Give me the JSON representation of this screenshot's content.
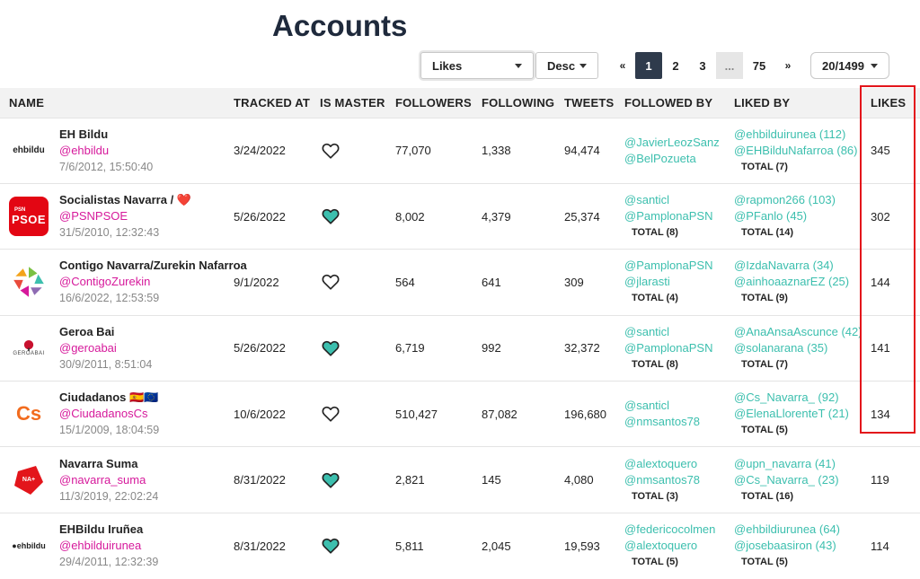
{
  "title": "Accounts",
  "controls": {
    "sort_field": "Likes",
    "sort_dir": "Desc",
    "pager": {
      "prev": "«",
      "pages": [
        "1",
        "2",
        "3"
      ],
      "ellipsis": "...",
      "last": "75",
      "next": "»"
    },
    "per_page": "20/1499"
  },
  "columns": [
    "NAME",
    "TRACKED AT",
    "IS MASTER",
    "FOLLOWERS",
    "FOLLOWING",
    "TWEETS",
    "FOLLOWED BY",
    "LIKED BY",
    "LIKES"
  ],
  "colors": {
    "accent": "#3cbfae",
    "handle": "#d6199b",
    "highlight": "#e3151b",
    "active_page": "#2f3b4c"
  },
  "rows": [
    {
      "logo": "ehbildu",
      "name": "EH Bildu",
      "handle": "@ehbildu",
      "created": "7/6/2012, 15:50:40",
      "tracked_at": "3/24/2022",
      "is_master": false,
      "followers": "77,070",
      "following": "1,338",
      "tweets": "94,474",
      "followed_by": [
        "@JavierLeozSanz",
        "@BelPozueta"
      ],
      "followed_total": "",
      "liked_by": [
        "@ehbilduirunea (112)",
        "@EHBilduNafarroa (86)"
      ],
      "liked_total": "TOTAL (7)",
      "likes": "345"
    },
    {
      "logo": "psoe",
      "logo_small": "PSN",
      "logo_large": "PSOE",
      "name": "Socialistas Navarra / ❤️",
      "handle": "@PSNPSOE",
      "created": "31/5/2010, 12:32:43",
      "tracked_at": "5/26/2022",
      "is_master": true,
      "followers": "8,002",
      "following": "4,379",
      "tweets": "25,374",
      "followed_by": [
        "@santicl",
        "@PamplonaPSN"
      ],
      "followed_total": "TOTAL (8)",
      "liked_by": [
        "@rapmon266 (103)",
        "@PFanlo (45)"
      ],
      "liked_total": "TOTAL (14)",
      "likes": "302"
    },
    {
      "logo": "contigo",
      "name": "Contigo Navarra/Zurekin Nafarroa",
      "handle": "@ContigoZurekin",
      "created": "16/6/2022, 12:53:59",
      "tracked_at": "9/1/2022",
      "is_master": false,
      "followers": "564",
      "following": "641",
      "tweets": "309",
      "followed_by": [
        "@PamplonaPSN",
        "@jlarasti"
      ],
      "followed_total": "TOTAL (4)",
      "liked_by": [
        "@IzdaNavarra (34)",
        "@ainhoaaznarEZ (25)"
      ],
      "liked_total": "TOTAL (9)",
      "likes": "144"
    },
    {
      "logo": "geroa",
      "logo_text": "GEROABAI",
      "name": "Geroa Bai",
      "handle": "@geroabai",
      "created": "30/9/2011, 8:51:04",
      "tracked_at": "5/26/2022",
      "is_master": true,
      "followers": "6,719",
      "following": "992",
      "tweets": "32,372",
      "followed_by": [
        "@santicl",
        "@PamplonaPSN"
      ],
      "followed_total": "TOTAL (8)",
      "liked_by": [
        "@AnaAnsaAscunce (42)",
        "@solanarana (35)"
      ],
      "liked_total": "TOTAL (7)",
      "likes": "141"
    },
    {
      "logo": "cs",
      "logo_text": "Cs",
      "name": "Ciudadanos 🇪🇸🇪🇺",
      "handle": "@CiudadanosCs",
      "created": "15/1/2009, 18:04:59",
      "tracked_at": "10/6/2022",
      "is_master": false,
      "followers": "510,427",
      "following": "87,082",
      "tweets": "196,680",
      "followed_by": [
        "@santicl",
        "@nmsantos78"
      ],
      "followed_total": "",
      "liked_by": [
        "@Cs_Navarra_ (92)",
        "@ElenaLlorenteT (21)"
      ],
      "liked_total": "TOTAL (5)",
      "likes": "134"
    },
    {
      "logo": "navarra",
      "logo_text": "NA+",
      "name": "Navarra Suma",
      "handle": "@navarra_suma",
      "created": "11/3/2019, 22:02:24",
      "tracked_at": "8/31/2022",
      "is_master": true,
      "followers": "2,821",
      "following": "145",
      "tweets": "4,080",
      "followed_by": [
        "@alextoquero",
        "@nmsantos78"
      ],
      "followed_total": "TOTAL (3)",
      "liked_by": [
        "@upn_navarra (41)",
        "@Cs_Navarra_ (23)"
      ],
      "liked_total": "TOTAL (16)",
      "likes": "119"
    },
    {
      "logo": "ehbildu-irunea",
      "logo_text": "●ehbildu",
      "name": "EHBildu Iruñea",
      "handle": "@ehbilduirunea",
      "created": "29/4/2011, 12:32:39",
      "tracked_at": "8/31/2022",
      "is_master": true,
      "followers": "5,811",
      "following": "2,045",
      "tweets": "19,593",
      "followed_by": [
        "@federicocolmen",
        "@alextoquero"
      ],
      "followed_total": "TOTAL (5)",
      "liked_by": [
        "@ehbildiurunea (64)",
        "@josebaasiron (43)"
      ],
      "liked_total": "TOTAL (5)",
      "likes": "114"
    }
  ]
}
